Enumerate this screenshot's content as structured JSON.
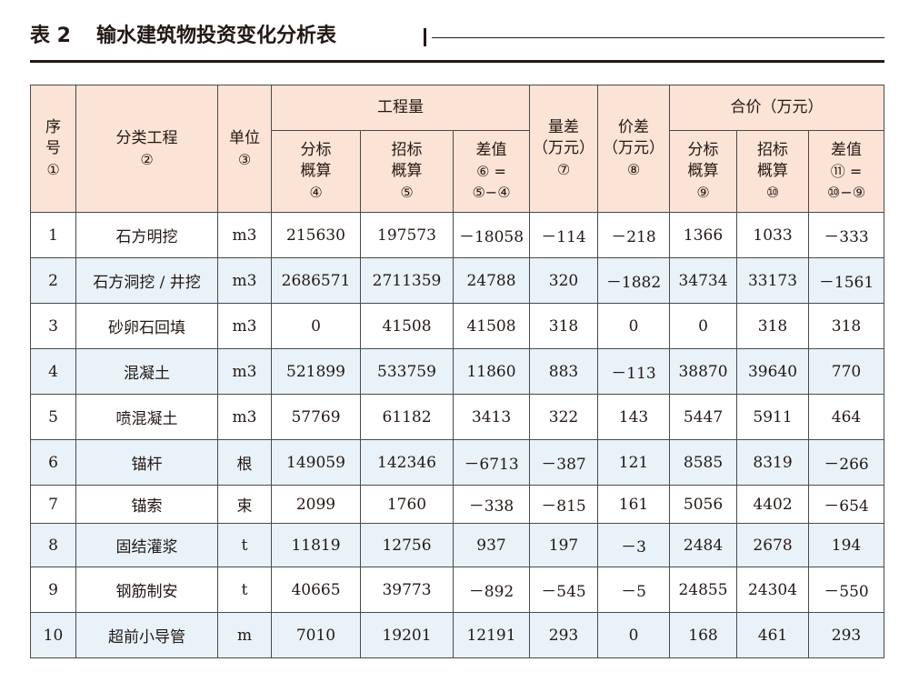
{
  "title": {
    "number": "表 2",
    "text": "输水建筑物投资变化分析表"
  },
  "header": {
    "seq": {
      "line1": "序",
      "line2": "号",
      "circ": "①"
    },
    "category": {
      "label": "分类工程",
      "circ": "②"
    },
    "unit": {
      "label": "单位",
      "circ": "③"
    },
    "quantity_group": "工程量",
    "qty_bid": {
      "line1": "分标",
      "line2": "概算",
      "circ": "④"
    },
    "qty_tender": {
      "line1": "招标",
      "line2": "概算",
      "circ": "⑤"
    },
    "qty_diff": {
      "line1": "差值",
      "line2": "⑥ =",
      "line3": "⑤−④"
    },
    "qty_cost": {
      "line1": "量差",
      "line2": "（万元）",
      "circ": "⑦"
    },
    "price_cost": {
      "line1": "价差",
      "line2": "（万元）",
      "circ": "⑧"
    },
    "total_group": "合价（万元）",
    "total_bid": {
      "line1": "分标",
      "line2": "概算",
      "circ": "⑨"
    },
    "total_tender": {
      "line1": "招标",
      "line2": "概算",
      "circ": "⑩"
    },
    "total_diff": {
      "line1": "差值",
      "line2": "⑪ =",
      "line3": "⑩−⑨"
    }
  },
  "rows": [
    {
      "seq": "1",
      "category": "石方明挖",
      "unit": "m3",
      "qty_bid": "215630",
      "qty_tender": "197573",
      "qty_diff": "－18058",
      "qty_cost": "－114",
      "price_cost": "－218",
      "total_bid": "1366",
      "total_tender": "1033",
      "total_diff": "－333"
    },
    {
      "seq": "2",
      "category": "石方洞挖 / 井挖",
      "unit": "m3",
      "qty_bid": "2686571",
      "qty_tender": "2711359",
      "qty_diff": "24788",
      "qty_cost": "320",
      "price_cost": "－1882",
      "total_bid": "34734",
      "total_tender": "33173",
      "total_diff": "－1561"
    },
    {
      "seq": "3",
      "category": "砂卵石回填",
      "unit": "m3",
      "qty_bid": "0",
      "qty_tender": "41508",
      "qty_diff": "41508",
      "qty_cost": "318",
      "price_cost": "0",
      "total_bid": "0",
      "total_tender": "318",
      "total_diff": "318"
    },
    {
      "seq": "4",
      "category": "混凝土",
      "unit": "m3",
      "qty_bid": "521899",
      "qty_tender": "533759",
      "qty_diff": "11860",
      "qty_cost": "883",
      "price_cost": "－113",
      "total_bid": "38870",
      "total_tender": "39640",
      "total_diff": "770"
    },
    {
      "seq": "5",
      "category": "喷混凝土",
      "unit": "m3",
      "qty_bid": "57769",
      "qty_tender": "61182",
      "qty_diff": "3413",
      "qty_cost": "322",
      "price_cost": "143",
      "total_bid": "5447",
      "total_tender": "5911",
      "total_diff": "464"
    },
    {
      "seq": "6",
      "category": "锚杆",
      "unit": "根",
      "qty_bid": "149059",
      "qty_tender": "142346",
      "qty_diff": "－6713",
      "qty_cost": "－387",
      "price_cost": "121",
      "total_bid": "8585",
      "total_tender": "8319",
      "total_diff": "－266"
    },
    {
      "seq": "7",
      "category": "锚索",
      "unit": "束",
      "qty_bid": "2099",
      "qty_tender": "1760",
      "qty_diff": "－338",
      "qty_cost": "－815",
      "price_cost": "161",
      "total_bid": "5056",
      "total_tender": "4402",
      "total_diff": "－654"
    },
    {
      "seq": "8",
      "category": "固结灌浆",
      "unit": "t",
      "qty_bid": "11819",
      "qty_tender": "12756",
      "qty_diff": "937",
      "qty_cost": "197",
      "price_cost": "－3",
      "total_bid": "2484",
      "total_tender": "2678",
      "total_diff": "194"
    },
    {
      "seq": "9",
      "category": "钢筋制安",
      "unit": "t",
      "qty_bid": "40665",
      "qty_tender": "39773",
      "qty_diff": "－892",
      "qty_cost": "－545",
      "price_cost": "－5",
      "total_bid": "24855",
      "total_tender": "24304",
      "total_diff": "－550"
    },
    {
      "seq": "10",
      "category": "超前小导管",
      "unit": "m",
      "qty_bid": "7010",
      "qty_tender": "19201",
      "qty_diff": "12191",
      "qty_cost": "293",
      "price_cost": "0",
      "total_bid": "168",
      "total_tender": "461",
      "total_diff": "293"
    }
  ],
  "colors": {
    "header_bg": "#fbe3d5",
    "stripe_bg": "#e8f2f8",
    "text": "#231815",
    "border": "#4a4a4a"
  }
}
